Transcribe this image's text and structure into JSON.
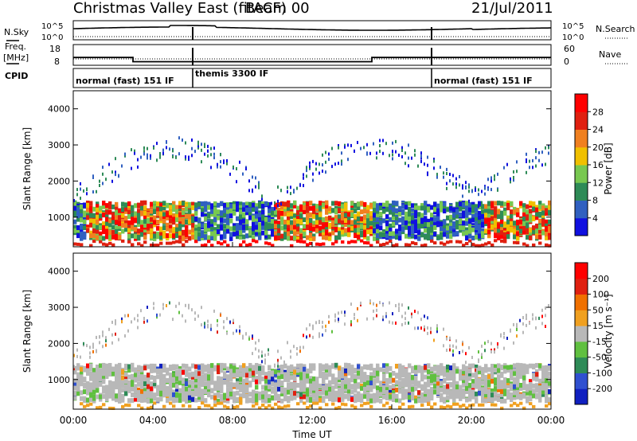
{
  "header": {
    "station": "Christmas Valley East (fitACF)",
    "beam": "Beam 00",
    "date": "21/Jul/2011"
  },
  "left_labels": {
    "nsky": "N.Sky",
    "freq_line1": "Freq.",
    "freq_line2": "[MHz]",
    "cpid": "CPID"
  },
  "right_labels": {
    "nsearch": "N.Search",
    "nave": "Nave"
  },
  "chart_data": [
    {
      "type": "line",
      "panel": "noise",
      "series": [
        {
          "name": "N.Sky",
          "style": "solid"
        },
        {
          "name": "N.Search",
          "style": "dotted"
        }
      ],
      "left_ticks": [
        "10^5",
        "10^0"
      ],
      "right_ticks": [
        "10^5",
        "10^0"
      ]
    },
    {
      "type": "line",
      "panel": "frequency",
      "series": [
        {
          "name": "Freq.",
          "style": "solid",
          "x": [
            "00:00",
            "03:00",
            "03:00",
            "15:00",
            "15:00",
            "18:00",
            "18:00",
            "24:00"
          ],
          "values": [
            13.5,
            13.5,
            10.2,
            10.2,
            13.5,
            13.5,
            13.5,
            13.5
          ]
        },
        {
          "name": "Nave",
          "style": "dotted",
          "x": [
            "00:00",
            "24:00"
          ],
          "values": [
            14,
            14
          ]
        }
      ],
      "left_ticks": [
        "18",
        "8"
      ],
      "right_ticks": [
        "60",
        "0"
      ]
    },
    {
      "type": "table",
      "panel": "cpid",
      "segments": [
        {
          "label": "normal (fast) 151 IF",
          "start": "00:00",
          "end": "06:00"
        },
        {
          "label": "themis 3300 IF",
          "start": "06:00",
          "end": "18:00"
        },
        {
          "label": "normal (fast) 151 IF",
          "start": "18:00",
          "end": "24:00"
        }
      ]
    },
    {
      "type": "heatmap",
      "panel": "power",
      "ylabel": "Slant Range [km]",
      "yticks": [
        "4000",
        "3000",
        "2000",
        "1000"
      ],
      "ylim": [
        180,
        4500
      ],
      "colorbar": {
        "label": "Power [dB]",
        "ticks": [
          "28",
          "24",
          "20",
          "16",
          "12",
          "8",
          "4"
        ],
        "range": [
          0,
          32
        ],
        "colors": [
          "#1010e0",
          "#3060c0",
          "#2e8b57",
          "#78c850",
          "#f0c000",
          "#f08020",
          "#e02010",
          "#ff0000"
        ]
      }
    },
    {
      "type": "heatmap",
      "panel": "velocity",
      "ylabel": "Slant Range [km]",
      "yticks": [
        "4000",
        "3000",
        "2000",
        "1000"
      ],
      "ylim": [
        180,
        4500
      ],
      "xlabel": "Time UT",
      "xticks": [
        "00:00",
        "04:00",
        "08:00",
        "12:00",
        "16:00",
        "20:00",
        "00:00"
      ],
      "colorbar": {
        "label": "Velocity [m s⁻¹]",
        "ticks": [
          "200",
          "100",
          "50",
          "15",
          "-15",
          "-50",
          "-100",
          "-200"
        ],
        "colors": [
          "#1020c0",
          "#3050d0",
          "#2e8b57",
          "#60c040",
          "#b8b8b8",
          "#f0a020",
          "#f07000",
          "#e02010",
          "#ff0000"
        ]
      }
    }
  ],
  "colors": {
    "axis": "#000000",
    "background": "#ffffff"
  }
}
